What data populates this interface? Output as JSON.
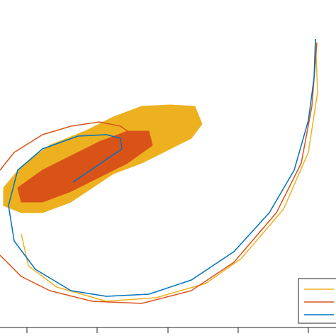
{
  "chart_data": {
    "type": "line",
    "xlim": [
      0,
      474
    ],
    "ylim": [
      12,
      474
    ],
    "xticks": [
      38,
      137,
      237,
      336,
      435
    ],
    "legend": "lower right",
    "series": [
      {
        "color": "#edb120",
        "fill": true,
        "x": [
          5,
          30,
          70,
          120,
          160,
          200,
          240,
          275,
          285,
          270,
          230,
          200,
          160,
          130,
          100,
          60,
          30,
          5
        ],
        "values": [
          209,
          239,
          269,
          289,
          309,
          324,
          326,
          324,
          299,
          279,
          259,
          244,
          229,
          209,
          189,
          174,
          174,
          184
        ]
      },
      {
        "color": "#d95319",
        "fill": true,
        "x": [
          25,
          60,
          100,
          140,
          180,
          210,
          215,
          180,
          140,
          100,
          60,
          30
        ],
        "values": [
          209,
          234,
          254,
          274,
          289,
          289,
          269,
          244,
          224,
          204,
          189,
          189
        ]
      },
      {
        "color": "#edb120",
        "legend": true,
        "x": [
          30,
          40,
          80,
          150,
          220,
          290,
          340,
          400,
          435,
          448,
          445
        ],
        "values": [
          144,
          99,
          69,
          49,
          54,
          74,
          109,
          179,
          259,
          344,
          419
        ]
      },
      {
        "color": "#d95319",
        "legend": true,
        "x": [
          0,
          20,
          60,
          100,
          140,
          170,
          190,
          0,
          0,
          30,
          70,
          130,
          200,
          270,
          330,
          390,
          425,
          440,
          447
        ],
        "values": [
          234,
          259,
          284,
          296,
          302,
          296,
          282,
          null,
          114,
          84,
          64,
          49,
          46,
          64,
          104,
          174,
          244,
          324,
          414
        ]
      },
      {
        "color": "#0072bd",
        "legend": true,
        "x": [
          103,
          150,
          172,
          170,
          150,
          110,
          60,
          25,
          12,
          20,
          50,
          100,
          150,
          210,
          270,
          330,
          380,
          415,
          435,
          443,
          445
        ],
        "values": [
          217,
          249,
          264,
          279,
          284,
          282,
          264,
          234,
          184,
          134,
          94,
          64,
          56,
          59,
          79,
          119,
          174,
          234,
          304,
          364,
          419
        ]
      }
    ]
  }
}
